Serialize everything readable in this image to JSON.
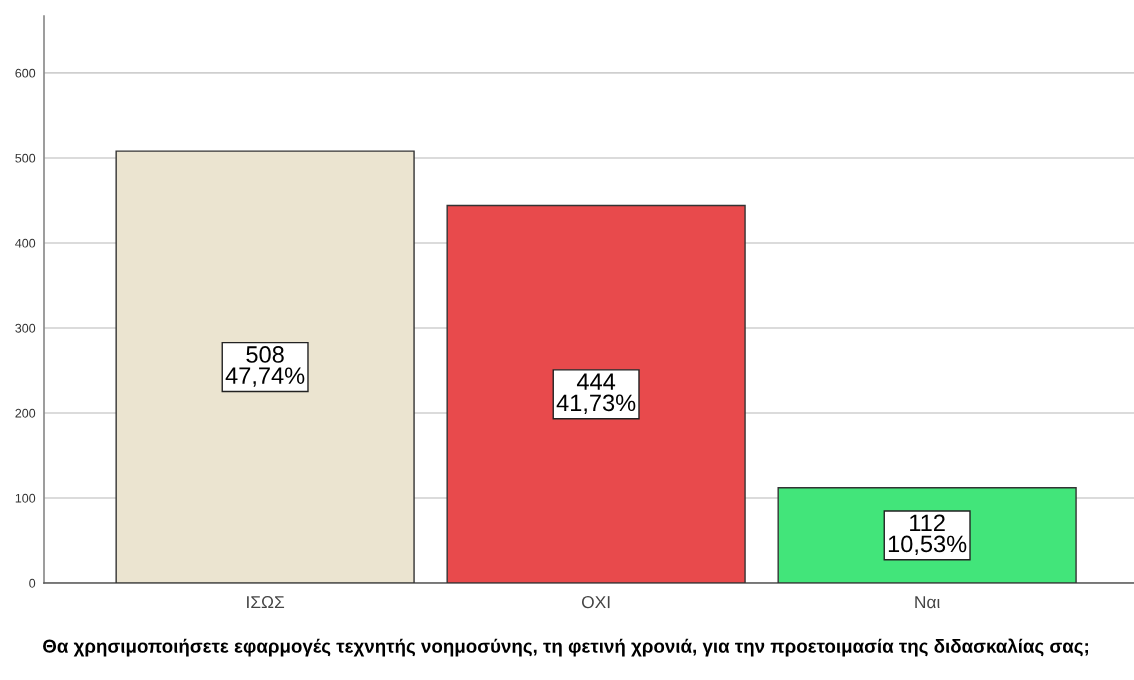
{
  "chart_data": {
    "type": "bar",
    "xlabel": "Θα χρησιμοποιήσετε εφαρμογές τεχνητής νοημοσύνης, τη φετινή χρονιά, για την προετοιμασία της διδασκαλίας σας;",
    "categories": [
      "ΙΣΩΣ",
      "ΟΧΙ",
      "Ναι"
    ],
    "values": [
      508,
      444,
      112
    ],
    "colors": [
      "#ebe4d0",
      "#e84a4c",
      "#42e57a"
    ],
    "value_labels": [
      "508\n47,74%",
      "444\n41,73%",
      "112\n10,53%"
    ],
    "ylim": [
      0,
      667
    ],
    "yticks": [
      0,
      100,
      200,
      300,
      400,
      500,
      600
    ],
    "grid": "y"
  }
}
